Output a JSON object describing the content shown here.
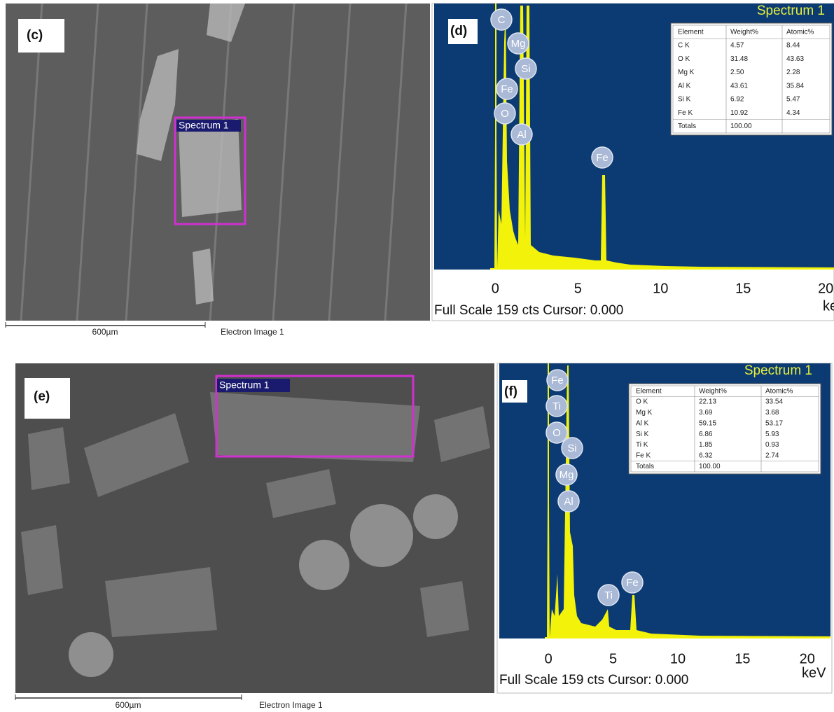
{
  "panels": {
    "c": {
      "label": "(c)",
      "spectrum_box": "Spectrum 1",
      "scale_bar": "600µm",
      "caption": "Electron Image 1"
    },
    "d": {
      "label": "(d)",
      "title": "Spectrum 1",
      "peaks": [
        "C",
        "Mg",
        "Si",
        "Fe",
        "O",
        "Al",
        "Fe"
      ],
      "table": {
        "header": [
          "Element",
          "Weight%",
          "Atomic%"
        ],
        "rows": [
          [
            "C K",
            "4.57",
            "8.44"
          ],
          [
            "O K",
            "31.48",
            "43.63"
          ],
          [
            "Mg K",
            "2.50",
            "2.28"
          ],
          [
            "Al K",
            "43.61",
            "35.84"
          ],
          [
            "Si K",
            "6.92",
            "5.47"
          ],
          [
            "Fe K",
            "10.92",
            "4.34"
          ],
          [
            "Totals",
            "100.00"
          ]
        ]
      },
      "axis": {
        "xlim": [
          -3.7,
          20.5
        ],
        "xticks": [
          0,
          5,
          10,
          15,
          20
        ],
        "unit": "keV"
      },
      "footer": "Full Scale 159 cts Cursor: 0.000"
    },
    "e": {
      "label": "(e)",
      "spectrum_box": "Spectrum 1",
      "scale_bar": "600µm",
      "caption": "Electron Image 1"
    },
    "f": {
      "label": "(f)",
      "title": "Spectrum 1",
      "peaks": [
        "Fe",
        "Ti",
        "O",
        "Si",
        "Mg",
        "Al",
        "Ti",
        "Fe"
      ],
      "table": {
        "header": [
          "Element",
          "Weight%",
          "Atomic%"
        ],
        "rows": [
          [
            "O K",
            "22.13",
            "33.54"
          ],
          [
            "Mg K",
            "3.69",
            "3.68"
          ],
          [
            "Al K",
            "59.15",
            "53.17"
          ],
          [
            "Si K",
            "6.86",
            "5.93"
          ],
          [
            "Ti K",
            "1.85",
            "0.93"
          ],
          [
            "Fe K",
            "6.32",
            "2.74"
          ],
          [
            "Totals",
            "100.00"
          ]
        ]
      },
      "axis": {
        "xlim": [
          -3.8,
          21.8
        ],
        "xticks": [
          0,
          5,
          10,
          15,
          20
        ],
        "unit": "keV"
      },
      "footer": "Full Scale 159 cts Cursor: 0.000"
    }
  }
}
